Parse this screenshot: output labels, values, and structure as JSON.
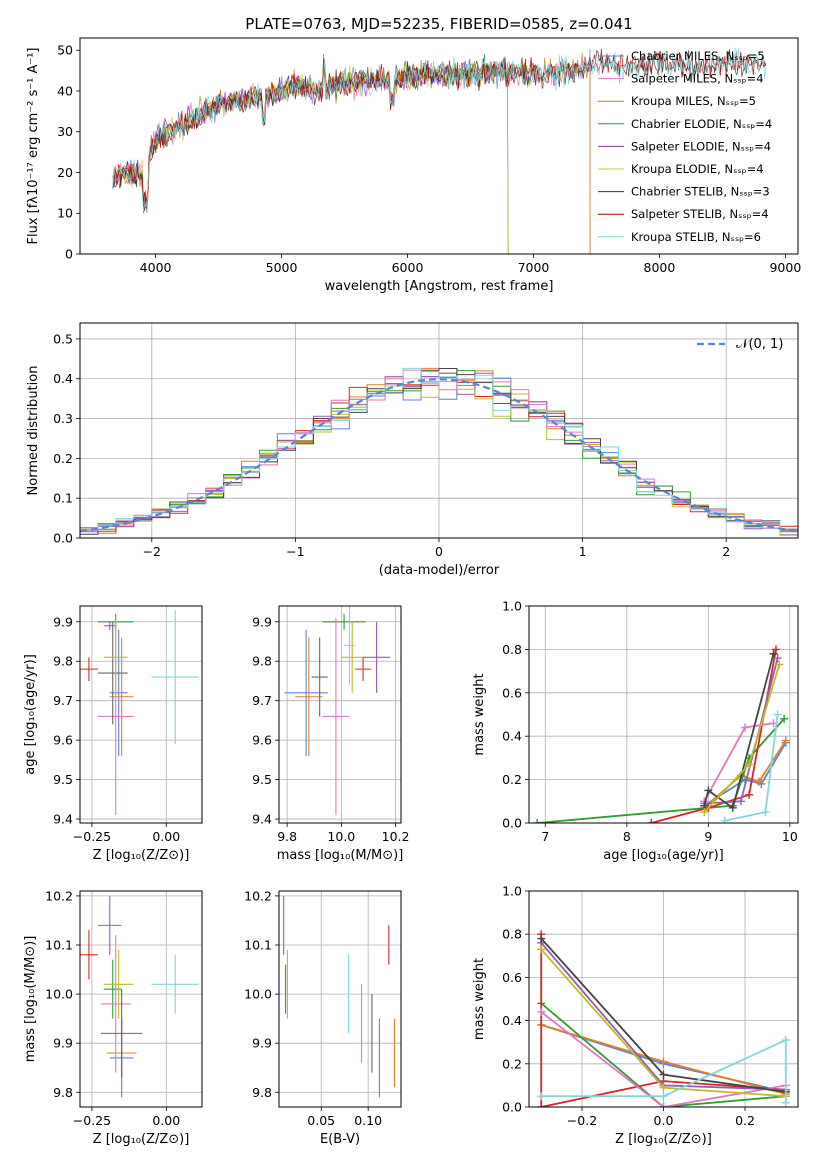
{
  "colors": [
    "#5b84d8",
    "#e67e22",
    "#2ca02c",
    "#d62728",
    "#9b59b6",
    "#8c564b",
    "#e377c2",
    "#666666",
    "#bcbd22",
    "#17becf"
  ],
  "chart_data": [
    {
      "id": "spectrum",
      "type": "line",
      "title": "PLATE=0763, MJD=52235, FIBERID=0585, z=0.041",
      "xlabel": "wavelength [Angstrom, rest frame]",
      "ylabel": "Flux [fλ10⁻¹⁷ erg cm⁻² s⁻¹ A⁻¹]",
      "xlim": [
        3400,
        9100
      ],
      "ylim": [
        0,
        53
      ],
      "xticks": [
        "4000",
        "5000",
        "6000",
        "7000",
        "8000",
        "9000"
      ],
      "yticks": [
        "0",
        "10",
        "20",
        "30",
        "40",
        "50"
      ],
      "series": [
        {
          "name": "Chabrier MILES, Nₛₛₚ=5",
          "color": "#5b84d8",
          "end": 7450
        },
        {
          "name": "Salpeter MILES, Nₛₛₚ=4",
          "color": "#e377c2",
          "end": 7450
        },
        {
          "name": "Kroupa MILES, Nₛₛₚ=5",
          "color": "#b8860b",
          "end": 7450
        },
        {
          "name": "Chabrier ELODIE, Nₛₛₚ=4",
          "color": "#2e8b57",
          "end": 6800
        },
        {
          "name": "Salpeter ELODIE, Nₛₛₚ=4",
          "color": "#9b30a8",
          "end": 6800
        },
        {
          "name": "Kroupa ELODIE, Nₛₛₚ=4",
          "color": "#cccc33",
          "end": 6800
        },
        {
          "name": "Chabrier STELIB, Nₛₛₚ=3",
          "color": "#333333",
          "end": 8850
        },
        {
          "name": "Salpeter STELIB, Nₛₛₚ=4",
          "color": "#aa0000",
          "end": 8850
        },
        {
          "name": "Kroupa STELIB, Nₛₛₚ=6",
          "color": "#7fd8d8",
          "end": 8850
        }
      ],
      "continuum": [
        [
          3650,
          19
        ],
        [
          3800,
          20
        ],
        [
          3900,
          19
        ],
        [
          4000,
          28
        ],
        [
          4100,
          30
        ],
        [
          4300,
          33
        ],
        [
          4500,
          37
        ],
        [
          4700,
          38
        ],
        [
          4900,
          39
        ],
        [
          5100,
          41
        ],
        [
          5200,
          41
        ],
        [
          5300,
          40
        ],
        [
          5500,
          42
        ],
        [
          5800,
          43
        ],
        [
          6000,
          43.5
        ],
        [
          6300,
          44
        ],
        [
          6500,
          44
        ],
        [
          6800,
          45
        ],
        [
          7000,
          44
        ],
        [
          7300,
          45
        ],
        [
          7500,
          47
        ],
        [
          7700,
          46
        ],
        [
          8000,
          47
        ],
        [
          8300,
          46
        ],
        [
          8600,
          47
        ],
        [
          8850,
          47
        ]
      ]
    },
    {
      "id": "residuals",
      "type": "step",
      "xlabel": "(data-model)/error",
      "ylabel": "Normed distribution",
      "xlim": [
        -2.5,
        2.5
      ],
      "ylim": [
        0,
        0.54
      ],
      "xticks": [
        "−2",
        "−1",
        "0",
        "1",
        "2"
      ],
      "yticks": [
        "0.0",
        "0.1",
        "0.2",
        "0.3",
        "0.4",
        "0.5"
      ],
      "legend": "𝒩(0, 1)",
      "bin_width": 0.125
    },
    {
      "id": "age_vs_Z",
      "type": "errorbar",
      "xlabel": "Z [log₁₀(Z/Z⊙)]",
      "ylabel": "age  [log₁₀(age/yr)]",
      "xlim": [
        -0.29,
        0.12
      ],
      "ylim": [
        9.39,
        9.94
      ],
      "xticks": [
        "−0.25",
        "0.00"
      ],
      "xtickvals": [
        -0.25,
        0.0
      ],
      "yticks": [
        "9.4",
        "9.5",
        "9.6",
        "9.7",
        "9.8",
        "9.9"
      ],
      "ytickvals": [
        9.4,
        9.5,
        9.6,
        9.7,
        9.8,
        9.9
      ],
      "points": [
        {
          "x": -0.16,
          "y": 9.72,
          "xe": 0.03,
          "ye": 0.16,
          "c": "#5b84d8"
        },
        {
          "x": -0.15,
          "y": 9.71,
          "xe": 0.04,
          "ye": 0.15,
          "c": "#e67e22"
        },
        {
          "x": -0.17,
          "y": 9.9,
          "xe": 0.06,
          "ye": 0.02,
          "c": "#2ca02c"
        },
        {
          "x": -0.26,
          "y": 9.78,
          "xe": 0.03,
          "ye": 0.03,
          "c": "#d62728"
        },
        {
          "x": -0.19,
          "y": 9.89,
          "xe": 0.02,
          "ye": 0.01,
          "c": "#9b59b6"
        },
        {
          "x": -0.17,
          "y": 9.66,
          "xe": 0.06,
          "ye": 0.25,
          "c": "#e377c2"
        },
        {
          "x": -0.18,
          "y": 9.77,
          "xe": 0.05,
          "ye": 0.13,
          "c": "#666666"
        },
        {
          "x": -0.17,
          "y": 9.81,
          "xe": 0.04,
          "ye": 0.09,
          "c": "#bcbd22"
        },
        {
          "x": 0.03,
          "y": 9.76,
          "xe": 0.08,
          "ye": 0.17,
          "c": "#7fd8d8"
        }
      ]
    },
    {
      "id": "age_vs_mass",
      "type": "errorbar",
      "xlabel": "mass [log₁₀(M/M⊙)]",
      "ylabel": "",
      "xlim": [
        9.77,
        10.22
      ],
      "ylim": [
        9.39,
        9.94
      ],
      "xticks": [
        "9.8",
        "10.0",
        "10.2"
      ],
      "xtickvals": [
        9.8,
        10.0,
        10.2
      ],
      "yticks": [
        "9.4",
        "9.5",
        "9.6",
        "9.7",
        "9.8",
        "9.9"
      ],
      "ytickvals": [
        9.4,
        9.5,
        9.6,
        9.7,
        9.8,
        9.9
      ],
      "points": [
        {
          "x": 9.87,
          "y": 9.72,
          "xe": 0.08,
          "ye": 0.16,
          "c": "#5b84d8"
        },
        {
          "x": 9.88,
          "y": 9.71,
          "xe": 0.05,
          "ye": 0.15,
          "c": "#e67e22"
        },
        {
          "x": 10.01,
          "y": 9.9,
          "xe": 0.08,
          "ye": 0.02,
          "c": "#2ca02c"
        },
        {
          "x": 10.08,
          "y": 9.78,
          "xe": 0.03,
          "ye": 0.03,
          "c": "#d62728"
        },
        {
          "x": 10.13,
          "y": 9.81,
          "xe": 0.05,
          "ye": 0.09,
          "c": "#9b59b6"
        },
        {
          "x": 9.98,
          "y": 9.66,
          "xe": 0.05,
          "ye": 0.25,
          "c": "#e377c2"
        },
        {
          "x": 9.92,
          "y": 9.76,
          "xe": 0.03,
          "ye": 0.1,
          "c": "#666666"
        },
        {
          "x": 10.04,
          "y": 9.81,
          "xe": 0.04,
          "ye": 0.09,
          "c": "#bcbd22"
        },
        {
          "x": 10.03,
          "y": 9.84,
          "xe": 0.02,
          "ye": 0.1,
          "c": "#7fd8d8"
        }
      ]
    },
    {
      "id": "weight_vs_age",
      "type": "line",
      "xlabel": "age  [log₁₀(age/yr)]",
      "ylabel": "mass weight",
      "xlim": [
        6.8,
        10.1
      ],
      "ylim": [
        0,
        1.0
      ],
      "xticks": [
        "7",
        "8",
        "9",
        "10"
      ],
      "xtickvals": [
        7,
        8,
        9,
        10
      ],
      "yticks": [
        "0.0",
        "0.2",
        "0.4",
        "0.6",
        "0.8",
        "1.0"
      ],
      "ytickvals": [
        0,
        0.2,
        0.4,
        0.6,
        0.8,
        1.0
      ],
      "series": [
        {
          "c": "#5b84d8",
          "pts": [
            [
              8.95,
              0.08
            ],
            [
              9.45,
              0.2
            ],
            [
              9.65,
              0.18
            ],
            [
              9.95,
              0.37
            ]
          ]
        },
        {
          "c": "#e67e22",
          "pts": [
            [
              8.95,
              0.07
            ],
            [
              9.4,
              0.22
            ],
            [
              9.62,
              0.19
            ],
            [
              9.95,
              0.38
            ]
          ]
        },
        {
          "c": "#2ca02c",
          "pts": [
            [
              6.9,
              0.0
            ],
            [
              9.3,
              0.08
            ],
            [
              9.5,
              0.3
            ],
            [
              9.93,
              0.48
            ]
          ]
        },
        {
          "c": "#d62728",
          "pts": [
            [
              8.3,
              0.0
            ],
            [
              9.0,
              0.07
            ],
            [
              9.5,
              0.13
            ],
            [
              9.83,
              0.8
            ]
          ]
        },
        {
          "c": "#9b59b6",
          "pts": [
            [
              8.95,
              0.09
            ],
            [
              9.4,
              0.1
            ],
            [
              9.85,
              0.76
            ]
          ]
        },
        {
          "c": "#e377c2",
          "pts": [
            [
              8.95,
              0.1
            ],
            [
              9.45,
              0.44
            ],
            [
              9.8,
              0.46
            ]
          ]
        },
        {
          "c": "#444444",
          "pts": [
            [
              8.95,
              0.08
            ],
            [
              9.0,
              0.15
            ],
            [
              9.3,
              0.07
            ],
            [
              9.8,
              0.78
            ]
          ]
        },
        {
          "c": "#bcbd22",
          "pts": [
            [
              8.95,
              0.05
            ],
            [
              9.5,
              0.27
            ],
            [
              9.87,
              0.73
            ]
          ]
        },
        {
          "c": "#7fd8d8",
          "pts": [
            [
              9.2,
              0.01
            ],
            [
              9.7,
              0.05
            ],
            [
              9.85,
              0.5
            ]
          ]
        }
      ]
    },
    {
      "id": "mass_vs_Z",
      "type": "errorbar",
      "xlabel": "Z [log₁₀(Z/Z⊙)]",
      "ylabel": "mass [log₁₀(M/M⊙)]",
      "xlim": [
        -0.29,
        0.12
      ],
      "ylim": [
        9.77,
        10.21
      ],
      "xticks": [
        "−0.25",
        "0.00"
      ],
      "xtickvals": [
        -0.25,
        0.0
      ],
      "yticks": [
        "9.8",
        "9.9",
        "10.0",
        "10.1",
        "10.2"
      ],
      "ytickvals": [
        9.8,
        9.9,
        10.0,
        10.1,
        10.2
      ],
      "points": [
        {
          "x": -0.15,
          "y": 9.87,
          "xe": 0.04,
          "ye": 0.08,
          "c": "#5b84d8"
        },
        {
          "x": -0.15,
          "y": 9.88,
          "xe": 0.05,
          "ye": 0.07,
          "c": "#e67e22"
        },
        {
          "x": -0.18,
          "y": 10.01,
          "xe": 0.03,
          "ye": 0.06,
          "c": "#2ca02c"
        },
        {
          "x": -0.26,
          "y": 10.08,
          "xe": 0.03,
          "ye": 0.05,
          "c": "#d62728"
        },
        {
          "x": -0.19,
          "y": 10.14,
          "xe": 0.04,
          "ye": 0.06,
          "c": "#9b59b6"
        },
        {
          "x": -0.17,
          "y": 9.98,
          "xe": 0.05,
          "ye": 0.14,
          "c": "#e377c2"
        },
        {
          "x": -0.15,
          "y": 9.92,
          "xe": 0.07,
          "ye": 0.09,
          "c": "#666666"
        },
        {
          "x": -0.16,
          "y": 10.02,
          "xe": 0.05,
          "ye": 0.07,
          "c": "#bcbd22"
        },
        {
          "x": 0.03,
          "y": 10.02,
          "xe": 0.08,
          "ye": 0.06,
          "c": "#7fd8d8"
        }
      ]
    },
    {
      "id": "mass_vs_EBV",
      "type": "errorbar",
      "xlabel": "E(B-V)",
      "ylabel": "",
      "xlim": [
        0.005,
        0.135
      ],
      "ylim": [
        9.77,
        10.21
      ],
      "xticks": [
        "0.05",
        "0.10"
      ],
      "xtickvals": [
        0.05,
        0.1
      ],
      "yticks": [
        "9.8",
        "9.9",
        "10.0",
        "10.1",
        "10.2"
      ],
      "ytickvals": [
        9.8,
        9.9,
        10.0,
        10.1,
        10.2
      ],
      "points": [
        {
          "x": 0.112,
          "y": 9.87,
          "xe": 0.0,
          "ye": 0.08,
          "c": "#5b84d8"
        },
        {
          "x": 0.128,
          "y": 9.88,
          "xe": 0.0,
          "ye": 0.07,
          "c": "#e67e22"
        },
        {
          "x": 0.012,
          "y": 10.01,
          "xe": 0.0,
          "ye": 0.05,
          "c": "#2ca02c"
        },
        {
          "x": 0.122,
          "y": 10.1,
          "xe": 0.0,
          "ye": 0.04,
          "c": "#d62728"
        },
        {
          "x": 0.01,
          "y": 10.14,
          "xe": 0.0,
          "ye": 0.06,
          "c": "#9b59b6"
        },
        {
          "x": 0.093,
          "y": 9.94,
          "xe": 0.0,
          "ye": 0.08,
          "c": "#e377c2"
        },
        {
          "x": 0.104,
          "y": 9.92,
          "xe": 0.0,
          "ye": 0.08,
          "c": "#666666"
        },
        {
          "x": 0.014,
          "y": 10.02,
          "xe": 0.0,
          "ye": 0.07,
          "c": "#bcbd22"
        },
        {
          "x": 0.079,
          "y": 10.0,
          "xe": 0.0,
          "ye": 0.08,
          "c": "#7fd8d8"
        }
      ]
    },
    {
      "id": "weight_vs_Z",
      "type": "line",
      "xlabel": "Z [log₁₀(Z/Z⊙)]",
      "ylabel": "mass weight",
      "xlim": [
        -0.33,
        0.33
      ],
      "ylim": [
        0,
        1.0
      ],
      "xticks": [
        "−0.2",
        "0.0",
        "0.2"
      ],
      "xtickvals": [
        -0.2,
        0.0,
        0.2
      ],
      "yticks": [
        "0.0",
        "0.2",
        "0.4",
        "0.6",
        "0.8",
        "1.0"
      ],
      "ytickvals": [
        0,
        0.2,
        0.4,
        0.6,
        0.8,
        1.0
      ],
      "series": [
        {
          "c": "#5b84d8",
          "pts": [
            [
              -0.3,
              0.38
            ],
            [
              0.0,
              0.2
            ],
            [
              0.3,
              0.07
            ]
          ]
        },
        {
          "c": "#e67e22",
          "pts": [
            [
              -0.3,
              0.38
            ],
            [
              0.0,
              0.21
            ],
            [
              0.3,
              0.06
            ]
          ]
        },
        {
          "c": "#2ca02c",
          "pts": [
            [
              -0.3,
              0.48
            ],
            [
              0.0,
              0.0
            ],
            [
              0.3,
              0.05
            ]
          ]
        },
        {
          "c": "#d62728",
          "pts": [
            [
              -0.3,
              0.8
            ],
            [
              -0.3,
              0.0
            ],
            [
              0.0,
              0.12
            ],
            [
              0.3,
              0.08
            ]
          ]
        },
        {
          "c": "#9b59b6",
          "pts": [
            [
              -0.3,
              0.76
            ],
            [
              0.0,
              0.1
            ],
            [
              0.3,
              0.08
            ]
          ]
        },
        {
          "c": "#e377c2",
          "pts": [
            [
              -0.3,
              0.44
            ],
            [
              0.0,
              0.0
            ],
            [
              0.3,
              0.1
            ]
          ]
        },
        {
          "c": "#444444",
          "pts": [
            [
              -0.3,
              0.78
            ],
            [
              0.0,
              0.15
            ],
            [
              0.3,
              0.07
            ]
          ]
        },
        {
          "c": "#bcbd22",
          "pts": [
            [
              -0.3,
              0.73
            ],
            [
              0.0,
              0.09
            ],
            [
              0.3,
              0.05
            ]
          ]
        },
        {
          "c": "#7fd8d8",
          "pts": [
            [
              -0.3,
              0.05
            ],
            [
              0.0,
              0.05
            ],
            [
              0.3,
              0.31
            ],
            [
              0.3,
              0.02
            ]
          ]
        }
      ]
    }
  ]
}
